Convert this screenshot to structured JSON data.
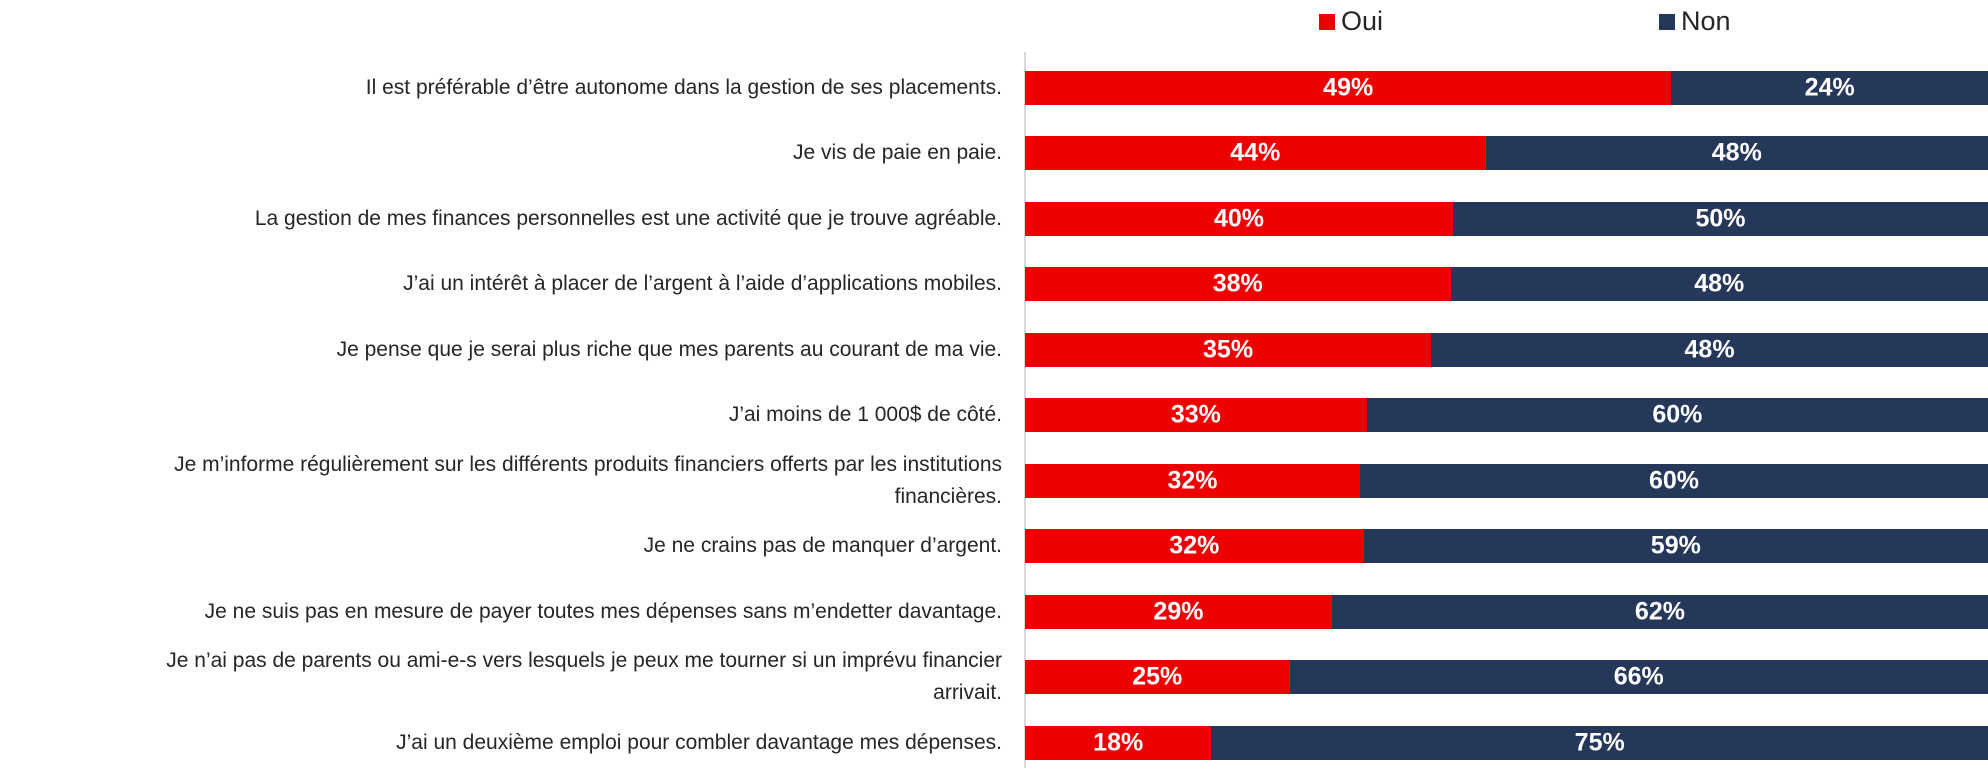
{
  "chart_data": {
    "type": "stacked-bar-horizontal",
    "categories": [
      "Il est préférable d’être autonome dans la gestion de ses placements.",
      "Je vis de paie en paie.",
      "La gestion de mes finances personnelles est une activité que je trouve agréable.",
      "J’ai un intérêt à placer de l’argent à l’aide d’applications mobiles.",
      "Je pense que je serai plus riche que mes parents au courant de ma vie.",
      "J’ai moins de 1 000$ de côté.",
      "Je m’informe régulièrement sur les différents produits financiers offerts par les institutions\nfinancières.",
      "Je ne crains pas de manquer d’argent.",
      "Je ne suis pas en mesure de payer toutes mes dépenses sans m’endetter davantage.",
      "Je n’ai pas de parents ou ami-e-s vers lesquels je peux me tourner si un imprévu financier\narrivait.",
      "J’ai un deuxième emploi pour combler davantage mes dépenses."
    ],
    "series": [
      {
        "name": "Oui",
        "color": "#ee0000",
        "values": [
          49,
          44,
          40,
          38,
          35,
          33,
          32,
          32,
          29,
          25,
          18
        ],
        "value_labels": [
          "49%",
          "44%",
          "40%",
          "38%",
          "35%",
          "33%",
          "32%",
          "32%",
          "29%",
          "25%",
          "18%"
        ]
      },
      {
        "name": "Non",
        "color": "#26385a",
        "values": [
          24,
          48,
          50,
          48,
          48,
          60,
          60,
          59,
          62,
          66,
          75
        ],
        "value_labels": [
          "24%",
          "48%",
          "50%",
          "48%",
          "48%",
          "60%",
          "60%",
          "59%",
          "62%",
          "66%",
          "75%"
        ]
      }
    ],
    "legend": "top"
  }
}
